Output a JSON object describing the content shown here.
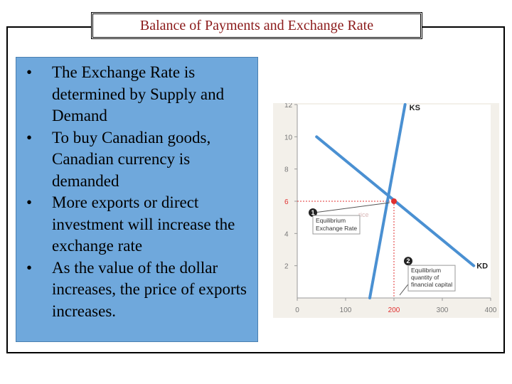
{
  "title": "Balance of Payments and Exchange Rate",
  "bullets": [
    "The Exchange Rate is determined by Supply and Demand",
    "To buy Canadian goods, Canadian currency is demanded",
    "More exports or direct investment will increase the exchange rate",
    "As the value of the dollar increases, the price of exports increases."
  ],
  "bullet_symbol": "•",
  "colors": {
    "title": "#8b1a1a",
    "panel": "#6fa8dc",
    "line": "#4a90d2",
    "point": "#e03030",
    "chart_bg": "#f3f0ea"
  },
  "chart_data": {
    "type": "line",
    "x_ticks": [
      "0",
      "100",
      "200",
      "300",
      "400"
    ],
    "y_ticks": [
      "2",
      "4",
      "6",
      "8",
      "10",
      "12"
    ],
    "xlim": [
      0,
      400
    ],
    "ylim": [
      0,
      12
    ],
    "grid": false,
    "series": [
      {
        "name": "KS",
        "x": [
          150,
          223
        ],
        "y": [
          0,
          12
        ]
      },
      {
        "name": "KD",
        "x": [
          40,
          365
        ],
        "y": [
          10,
          2
        ]
      }
    ],
    "equilibrium": {
      "x": 200,
      "y": 6
    },
    "annotations": [
      {
        "marker": "1",
        "lines": [
          "Equilibrium",
          "Exchange Rate"
        ]
      },
      {
        "marker": "2",
        "lines": [
          "Equilibrium",
          "quantity of",
          "financial capital"
        ]
      }
    ],
    "faint_label": "rice"
  }
}
